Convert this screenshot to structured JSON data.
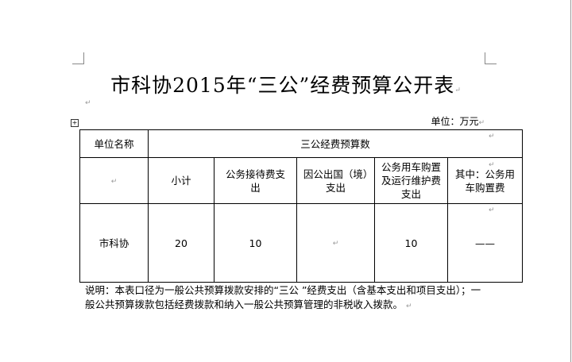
{
  "title": "市科协2015年“三公”经费预算公开表",
  "unit": "单位：万元",
  "table": {
    "header_row1": {
      "unit_name": "单位名称",
      "budget_group": "三公经费预算数"
    },
    "header_row2": [
      "",
      "小计",
      "公务接待费支出",
      "因公出国（境）支出",
      "公务用车购置及运行维护费支出",
      "其中：公务用车购置费"
    ],
    "rows": [
      [
        "市科协",
        "20",
        "10",
        "",
        "10",
        "——"
      ]
    ]
  },
  "note": "说明：本表口径为一般公共预算拨款安排的“三公 ”经费支出（含基本支出和项目支出）；一般公共预算拨款包括经费拨款和纳入一般公共预算管理的非税收入拨款。"
}
